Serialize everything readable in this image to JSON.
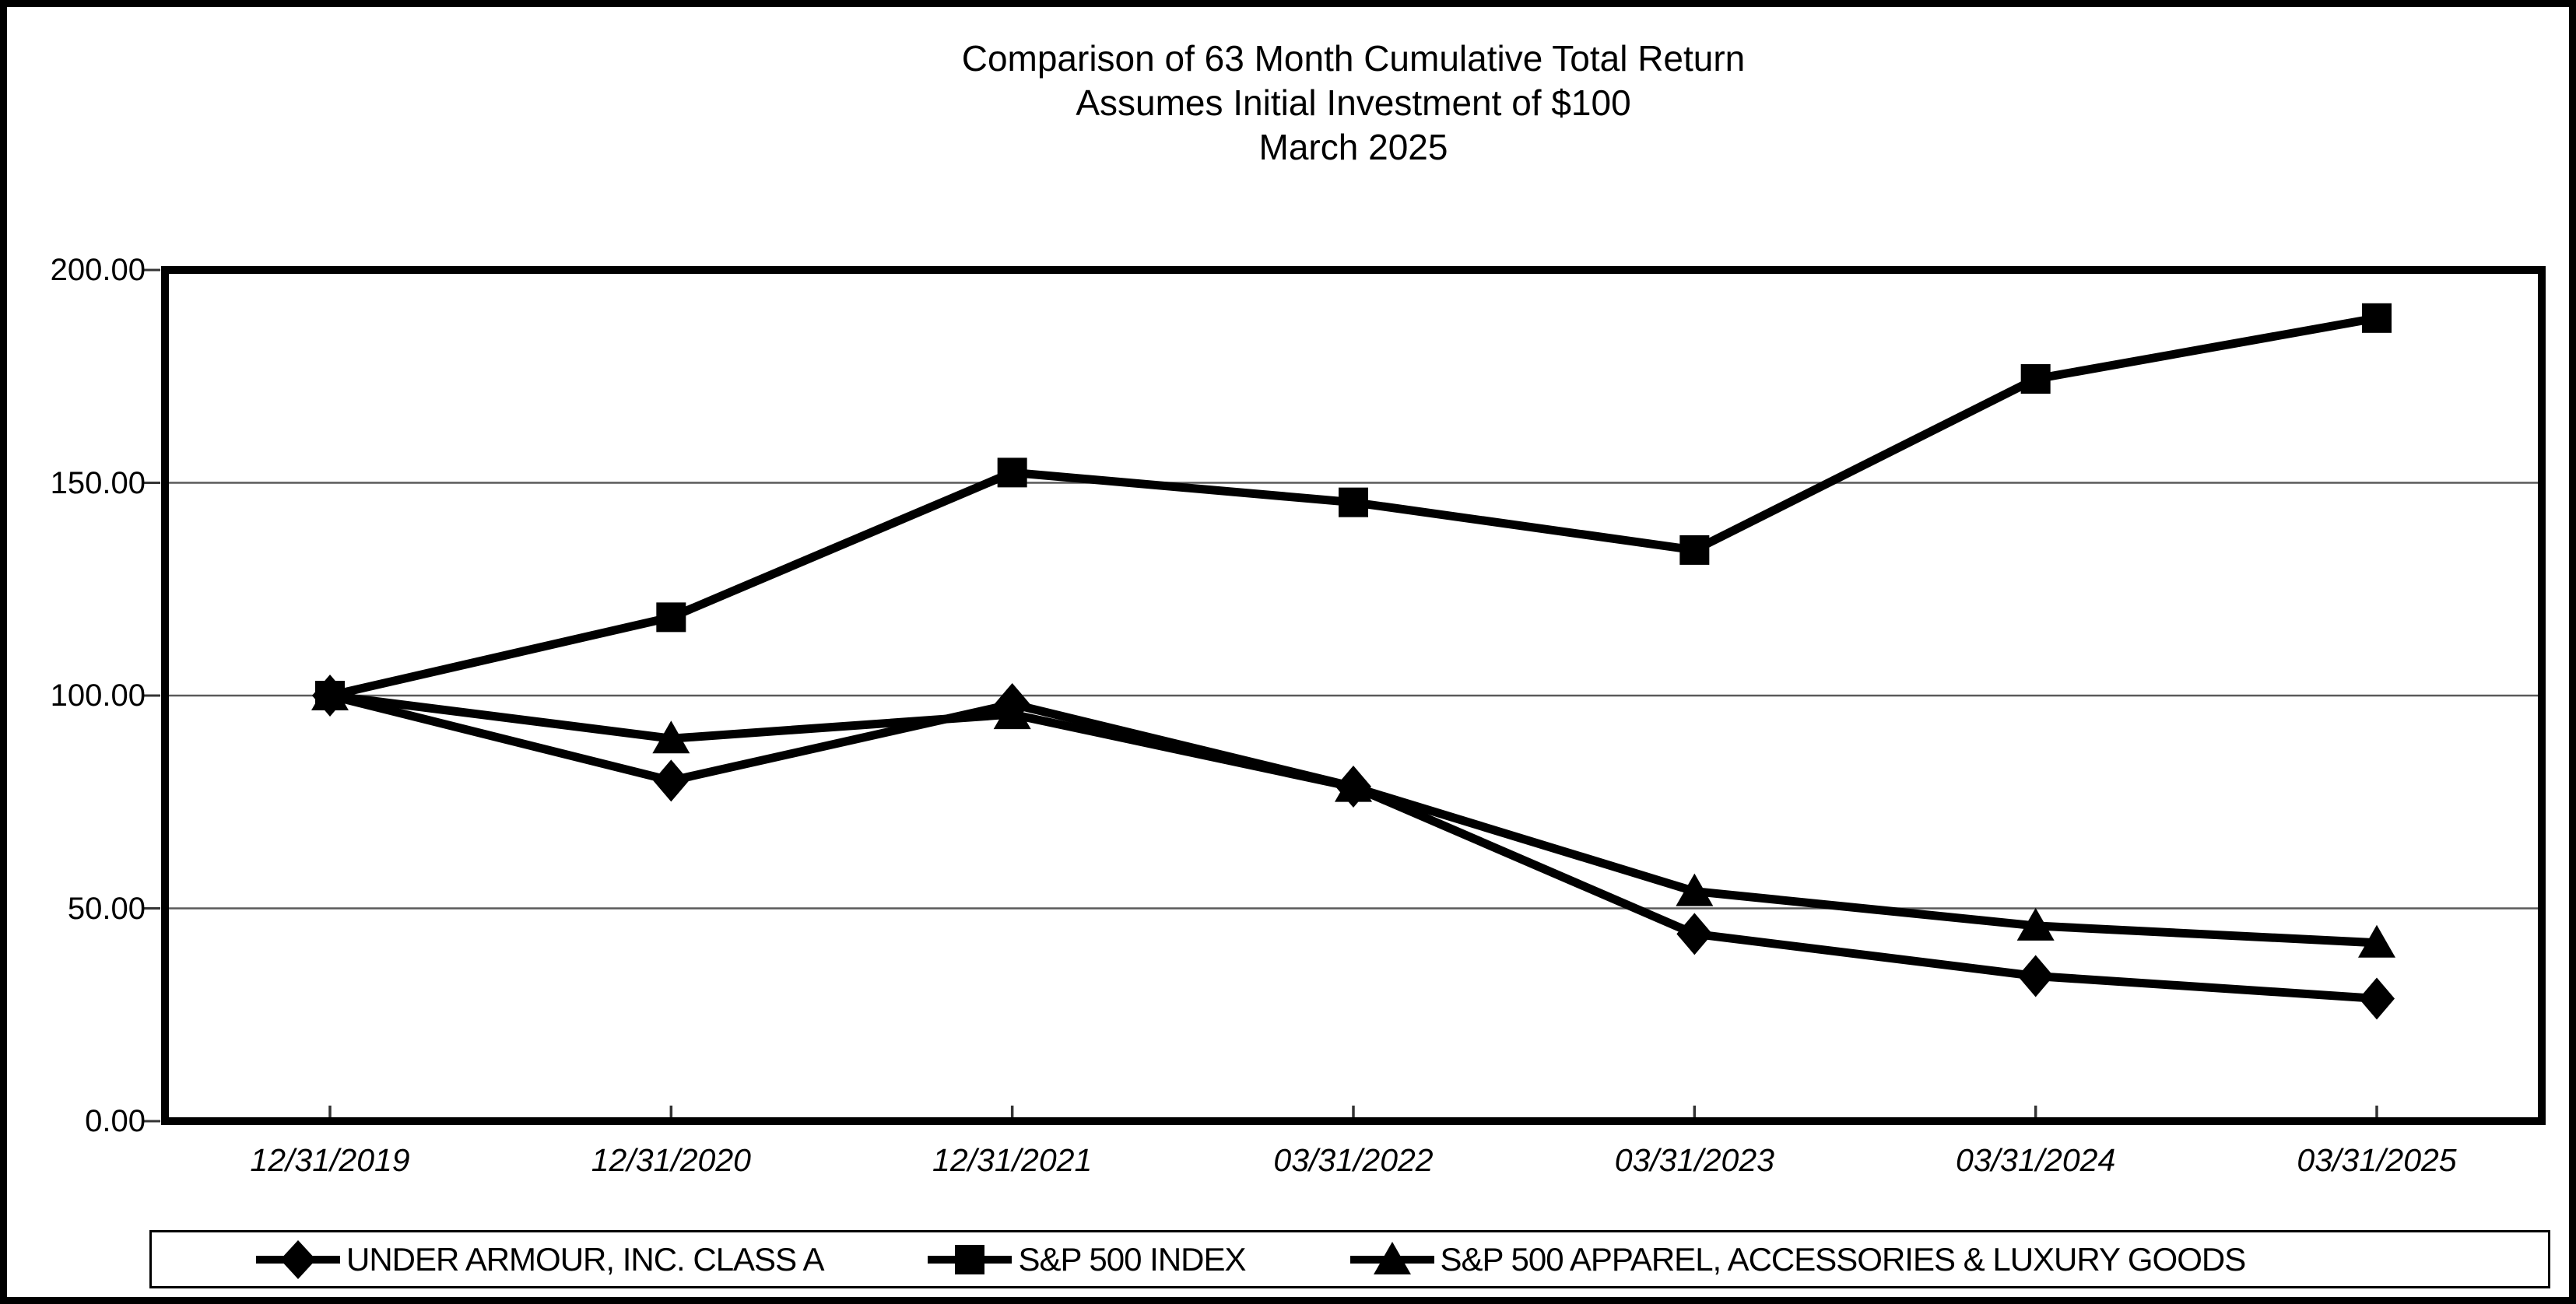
{
  "title": {
    "line1": "Comparison of 63 Month Cumulative Total Return",
    "line2": "Assumes Initial Investment of $100",
    "line3": "March 2025"
  },
  "chart_data": {
    "type": "line",
    "title": "Comparison of 63 Month Cumulative Total Return",
    "subtitle": "Assumes Initial Investment of $100",
    "date_label": "March 2025",
    "categories": [
      "12/31/2019",
      "12/31/2020",
      "12/31/2021",
      "03/31/2022",
      "03/31/2023",
      "03/31/2024",
      "03/31/2025"
    ],
    "series": [
      {
        "name": "UNDER ARMOUR, INC. CLASS A",
        "marker": "diamond",
        "values": [
          100.0,
          80.0,
          98.0,
          78.6,
          44.0,
          34.1,
          28.8
        ]
      },
      {
        "name": "S&P 500 INDEX",
        "marker": "square",
        "values": [
          100.0,
          118.4,
          152.4,
          145.4,
          134.2,
          174.4,
          188.7
        ]
      },
      {
        "name": "S&P 500 APPAREL, ACCESSORIES & LUXURY GOODS",
        "marker": "triangle",
        "values": [
          100.0,
          89.9,
          95.6,
          78.5,
          54.0,
          45.9,
          41.9
        ]
      }
    ],
    "ylim": [
      0,
      200
    ],
    "yticks": [
      {
        "value": 200,
        "label": "200.00"
      },
      {
        "value": 150,
        "label": "150.00"
      },
      {
        "value": 100,
        "label": "100.00"
      },
      {
        "value": 50,
        "label": "50.00"
      },
      {
        "value": 0,
        "label": "0.00"
      }
    ],
    "grid": "horizontal",
    "legend_position": "bottom",
    "line_color": "#000000",
    "gridline_color": "#5a5a5a",
    "background_color": "#ffffff"
  }
}
